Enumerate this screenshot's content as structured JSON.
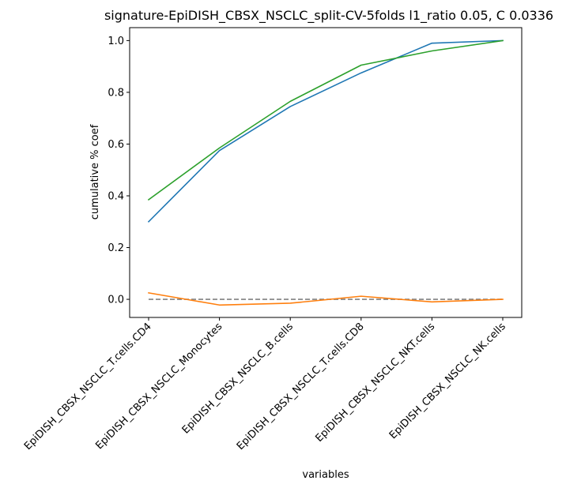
{
  "chart_data": {
    "type": "line",
    "title": "signature-EpiDISH_CBSX_NSCLC_split-CV-5folds l1_ratio 0.05, C 0.0336",
    "xlabel": "variables",
    "ylabel": "cumulative % coef",
    "categories": [
      "EpiDISH_CBSX_NSCLC_T.cells.CD4",
      "EpiDISH_CBSX_NSCLC_Monocytes",
      "EpiDISH_CBSX_NSCLC_B.cells",
      "EpiDISH_CBSX_NSCLC_T.cells.CD8",
      "EpiDISH_CBSX_NSCLC_NKT.cells",
      "EpiDISH_CBSX_NSCLC_NK.cells"
    ],
    "ylim": [
      -0.07,
      1.05
    ],
    "yticks": [
      0.0,
      0.2,
      0.4,
      0.6,
      0.8,
      1.0
    ],
    "ytick_labels": [
      "0.0",
      "0.2",
      "0.4",
      "0.6",
      "0.8",
      "1.0"
    ],
    "grid": false,
    "series": [
      {
        "color": "#1f77b4",
        "values": [
          0.3,
          0.575,
          0.745,
          0.875,
          0.99,
          1.0
        ]
      },
      {
        "color": "#ff7f0e",
        "values": [
          0.025,
          -0.022,
          -0.015,
          0.012,
          -0.01,
          0.0
        ]
      },
      {
        "color": "#2ca02c",
        "values": [
          0.385,
          0.585,
          0.765,
          0.905,
          0.96,
          1.0
        ]
      }
    ],
    "reference_line": {
      "y": 0.0,
      "style": "dashed",
      "color": "#808080"
    }
  }
}
